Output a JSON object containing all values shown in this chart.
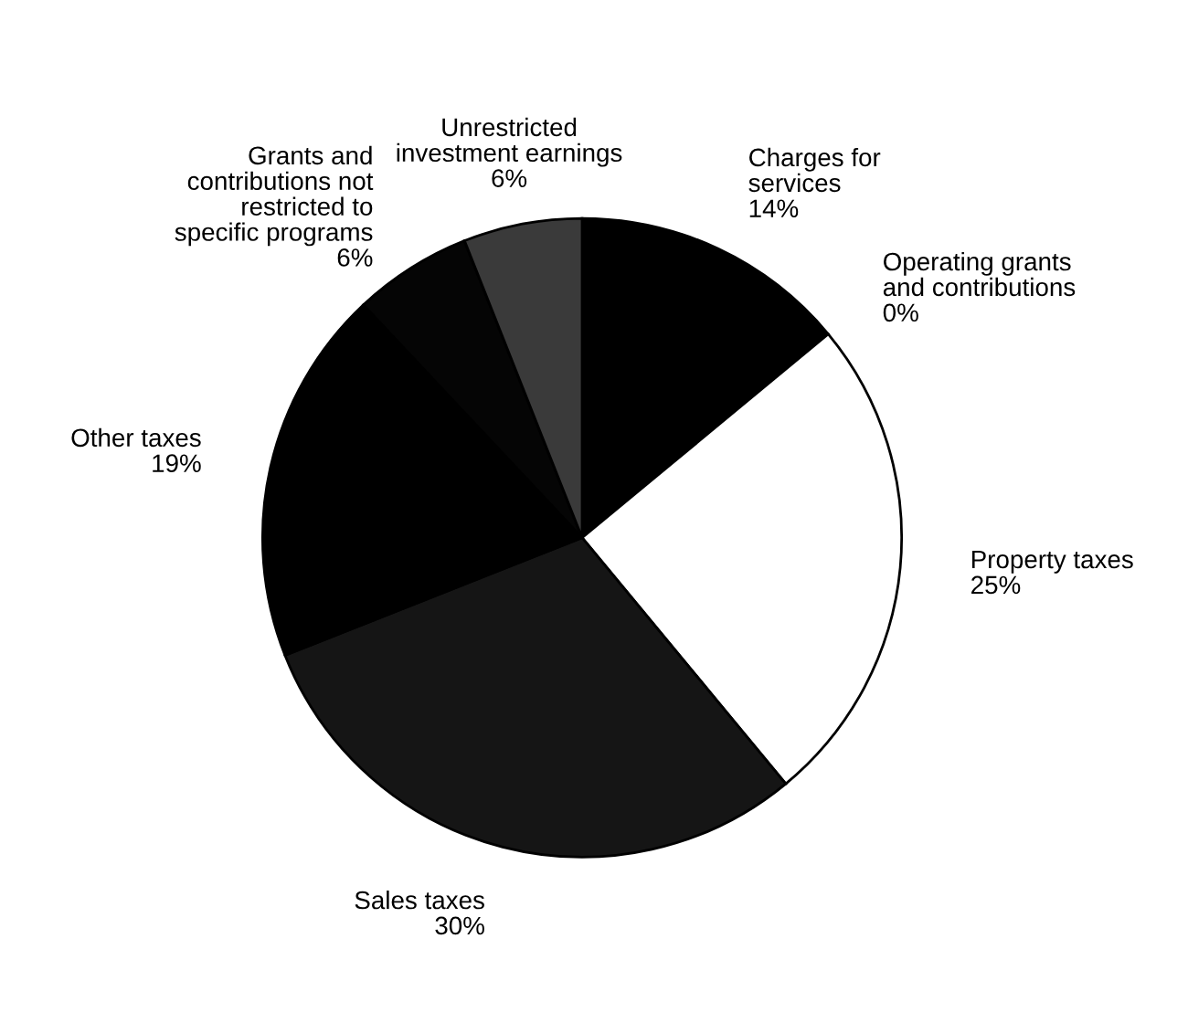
{
  "chart_data": {
    "type": "pie",
    "categories": [
      "Charges for\nservices",
      "Operating grants\nand contributions",
      "Property taxes",
      "Sales taxes",
      "Other taxes",
      "Grants and\ncontributions not\nrestricted to\nspecific programs",
      "Unrestricted\ninvestment earnings"
    ],
    "values": [
      14,
      0,
      25,
      30,
      19,
      6,
      6
    ],
    "value_labels": [
      "14%",
      "0%",
      "25%",
      "30%",
      "19%",
      "6%",
      "6%"
    ],
    "colors": [
      "#000000",
      "#000000",
      "#ffffff",
      "#151515",
      "#000000",
      "#050505",
      "#3a3a3a"
    ],
    "legend": false
  }
}
